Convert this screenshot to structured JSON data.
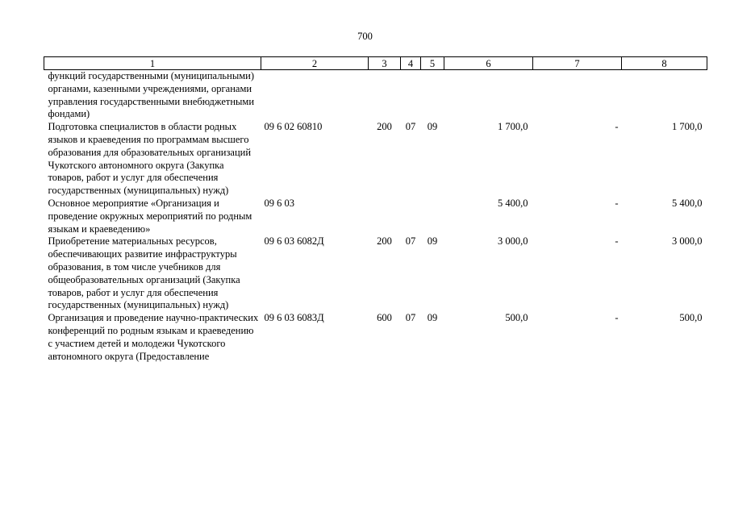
{
  "page_number": "700",
  "header": [
    "1",
    "2",
    "3",
    "4",
    "5",
    "6",
    "7",
    "8"
  ],
  "rows": [
    {
      "name": "функций государственными (муниципальными) органами, казенными учреждениями, органами управления государственными внебюджетными фондами)",
      "code": "",
      "vr": "",
      "rz": "",
      "pr": "",
      "sum": "",
      "change": "",
      "total": ""
    },
    {
      "name": "Подготовка специалистов в области родных языков и краеведения по программам высшего образования для образовательных организаций Чукотского автономного округа (Закупка товаров, работ и услуг для обеспечения государственных (муниципальных) нужд)",
      "code": "09 6 02 60810",
      "vr": "200",
      "rz": "07",
      "pr": "09",
      "sum": "1 700,0",
      "change": "-",
      "total": "1 700,0"
    },
    {
      "name": "Основное мероприятие «Организация и проведение окружных мероприятий по родным языкам и краеведению»",
      "code": "09 6 03",
      "vr": "",
      "rz": "",
      "pr": "",
      "sum": "5 400,0",
      "change": "-",
      "total": "5 400,0"
    },
    {
      "name": "Приобретение материальных ресурсов, обеспечивающих развитие инфраструктуры образования, в том числе учебников для общеобразовательных организаций (Закупка товаров, работ и услуг для обеспечения государственных (муниципальных) нужд)",
      "code": "09 6 03 6082Д",
      "vr": "200",
      "rz": "07",
      "pr": "09",
      "sum": "3 000,0",
      "change": "-",
      "total": "3 000,0"
    },
    {
      "name": "Организация и проведение научно-практических конференций по родным языкам и краеведению с участием детей и молодежи Чукотского автономного округа (Предоставление",
      "code": "09 6 03 6083Д",
      "vr": "600",
      "rz": "07",
      "pr": "09",
      "sum": "500,0",
      "change": "-",
      "total": "500,0"
    }
  ]
}
